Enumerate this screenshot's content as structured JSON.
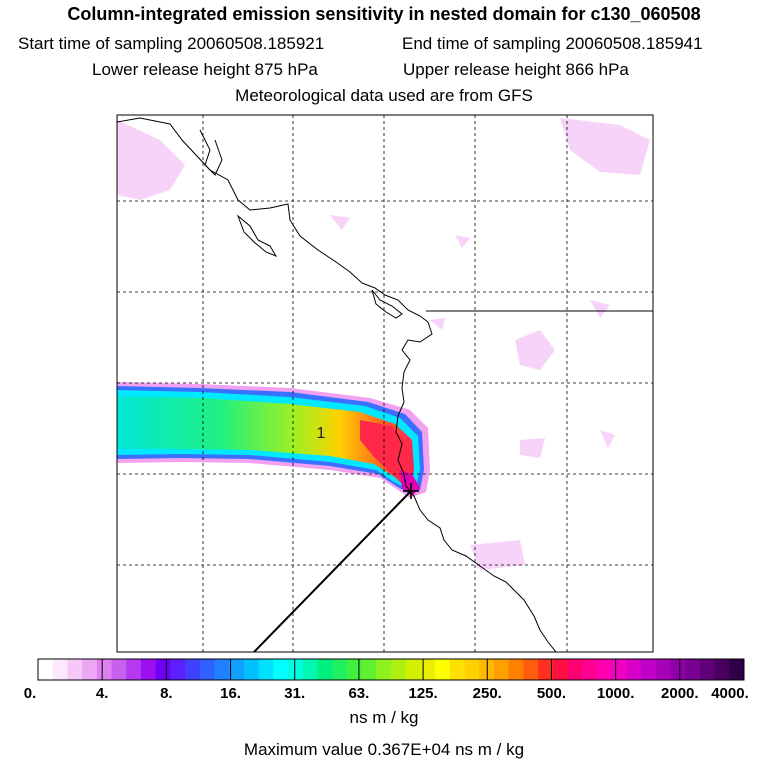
{
  "title": "Column-integrated emission sensitivity in nested domain for c130_060508",
  "header": {
    "start": "Start time of sampling 20060508.185921",
    "end": "End time of sampling 20060508.185941",
    "lower": "Lower release height  875 hPa",
    "upper": "Upper release height  866 hPa",
    "met": "Meteorological data used are from GFS"
  },
  "map": {
    "plume_label": "1",
    "release_marker": "release-site",
    "colors": {
      "coast": "#000000",
      "grid": "#000000",
      "flight_track": "#000000"
    }
  },
  "colorbar": {
    "tick_labels": [
      "0.",
      "4.",
      "8.",
      "16.",
      "31.",
      "63.",
      "125.",
      "250.",
      "500.",
      "1000.",
      "2000.",
      "4000."
    ],
    "colors": [
      "#ffffff",
      "#fde8fd",
      "#f6c8f8",
      "#eca6f3",
      "#de80ee",
      "#c860ee",
      "#b638f0",
      "#9b10f0",
      "#7000f5",
      "#5a20ff",
      "#4040ff",
      "#3060ff",
      "#2080ff",
      "#10a0ff",
      "#00c0ff",
      "#00e0ff",
      "#00ffff",
      "#00ffe0",
      "#00f8b0",
      "#00f080",
      "#20f060",
      "#40f040",
      "#60f030",
      "#90f020",
      "#b0f010",
      "#d0f000",
      "#e8f000",
      "#ffff00",
      "#ffe000",
      "#ffd000",
      "#ffb800",
      "#ffa000",
      "#ff8000",
      "#ff5c10",
      "#ff3020",
      "#ff1040",
      "#ff0070",
      "#ff0090",
      "#ff00b0",
      "#f000c0",
      "#d800c8",
      "#c000c8",
      "#a800b8",
      "#9000a8",
      "#780090",
      "#600078",
      "#480060",
      "#300048"
    ],
    "unit": "ns m / kg",
    "max_value_text": "Maximum value  0.367E+04 ns m / kg"
  }
}
